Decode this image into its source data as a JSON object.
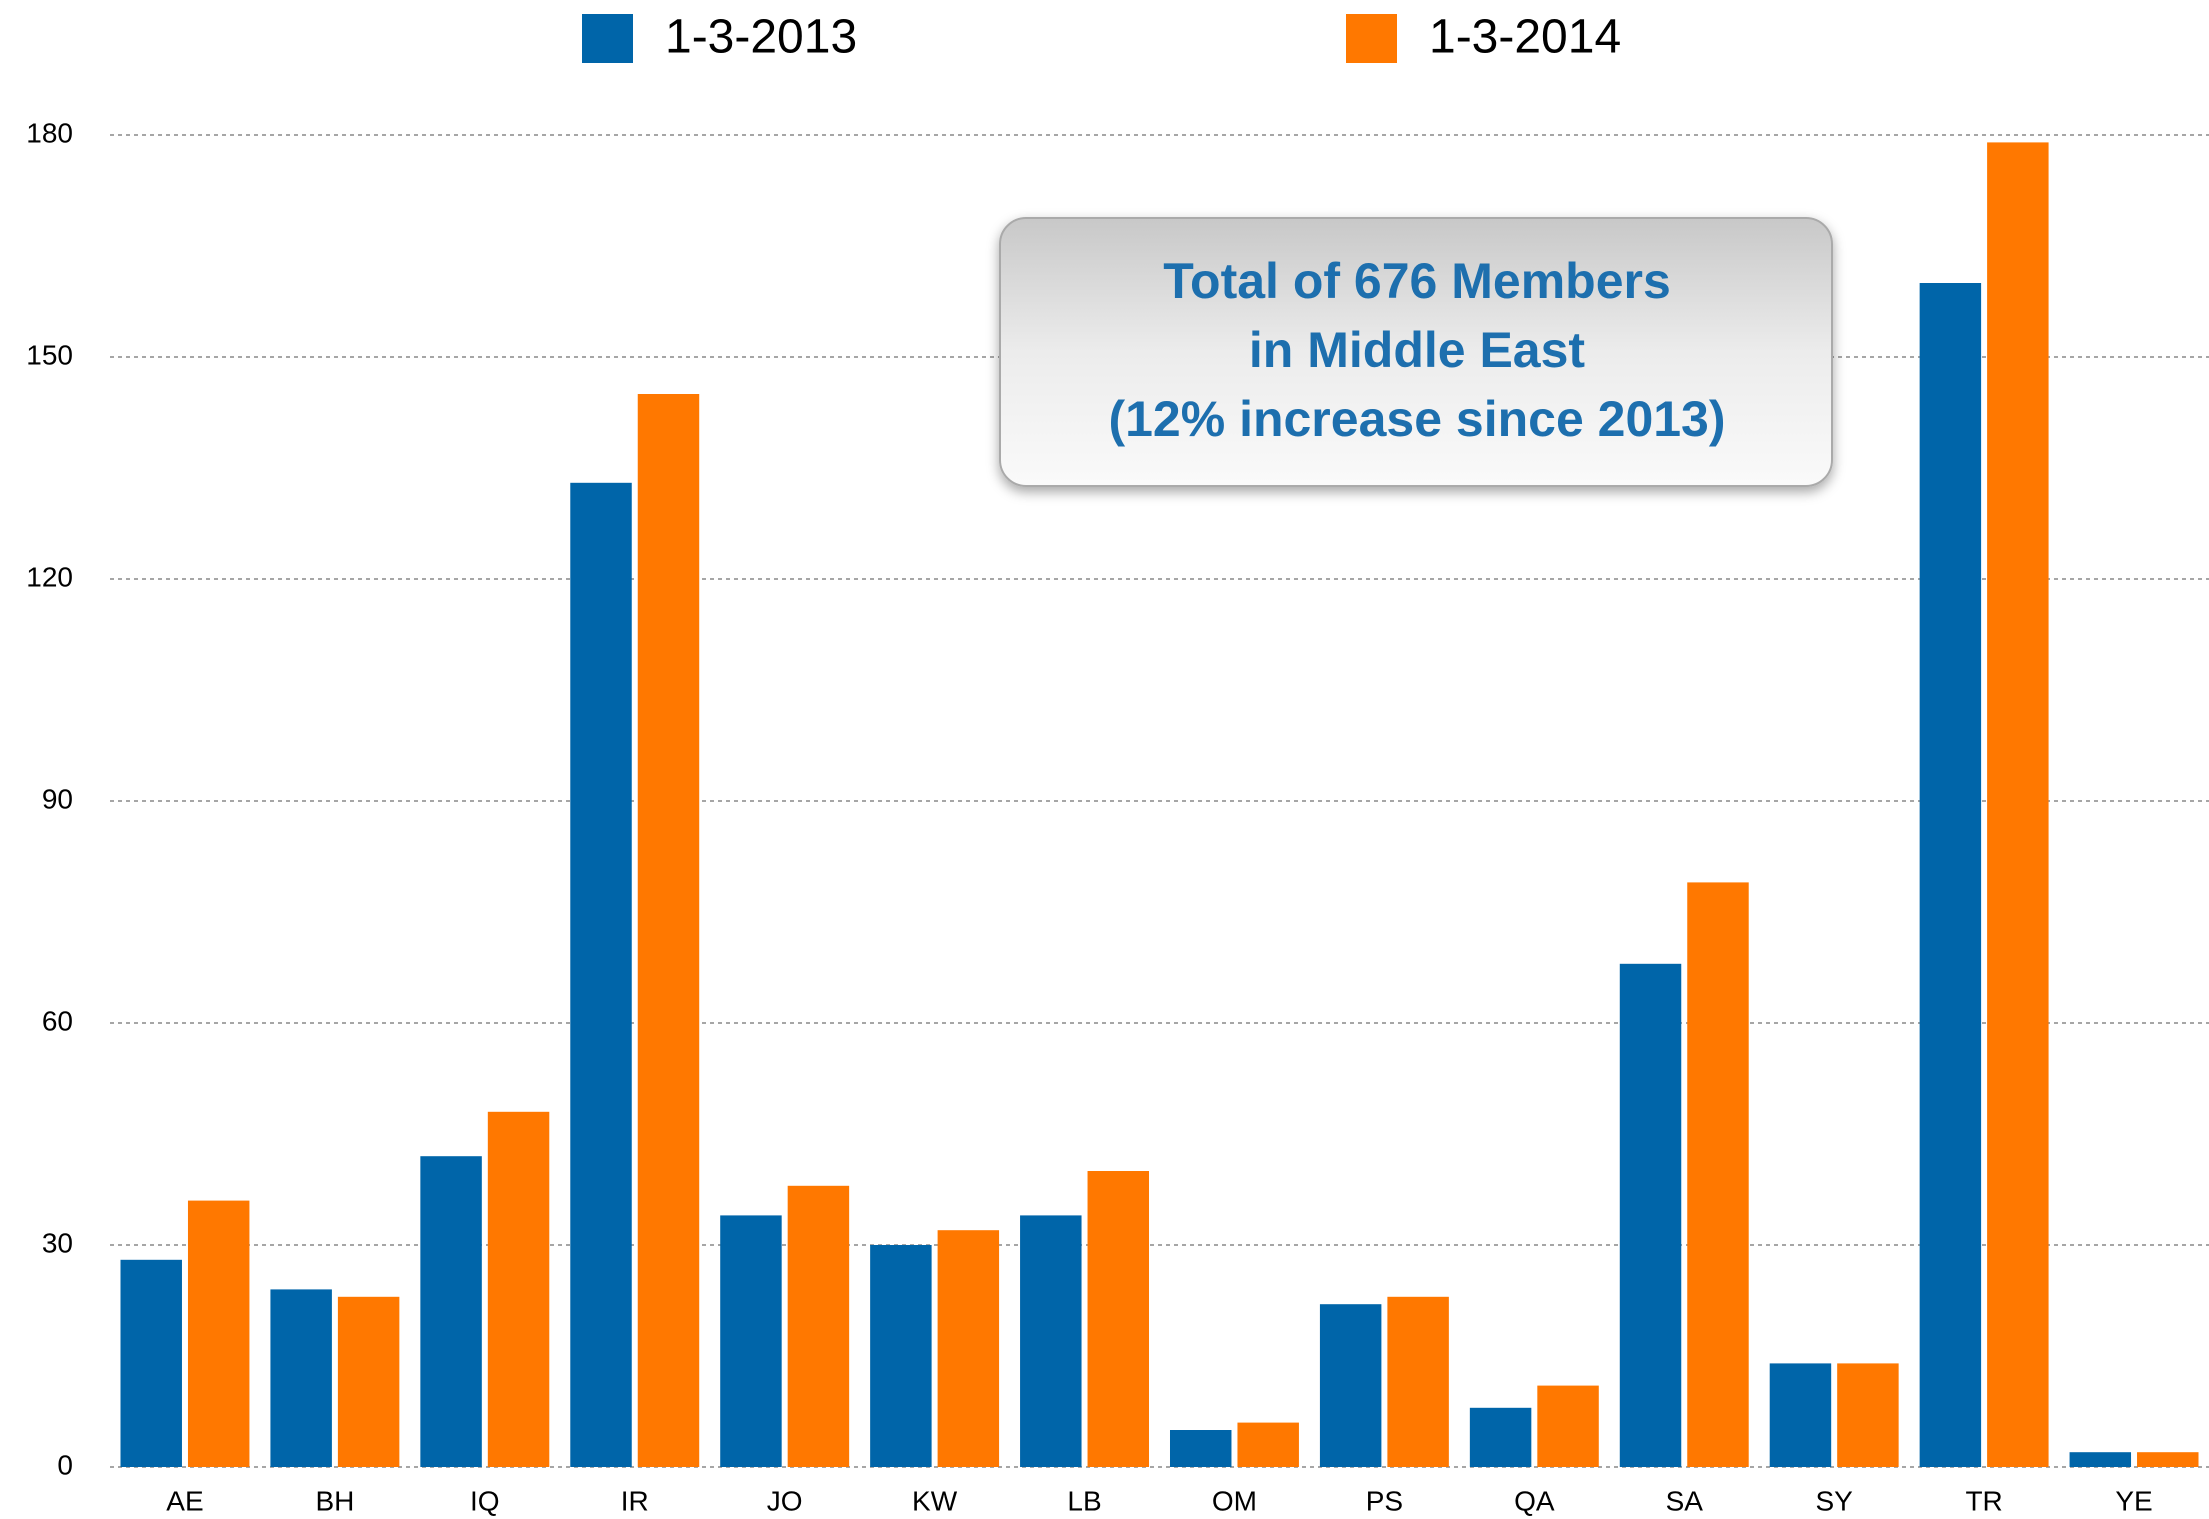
{
  "chart_data": {
    "type": "bar",
    "categories": [
      "AE",
      "BH",
      "IQ",
      "IR",
      "JO",
      "KW",
      "LB",
      "OM",
      "PS",
      "QA",
      "SA",
      "SY",
      "TR",
      "YE"
    ],
    "series": [
      {
        "name": "1-3-2013",
        "color": "#0065a9",
        "values": [
          28,
          24,
          42,
          133,
          34,
          30,
          34,
          5,
          22,
          8,
          68,
          14,
          160,
          2
        ]
      },
      {
        "name": "1-3-2014",
        "color": "#ff7800",
        "values": [
          36,
          23,
          48,
          145,
          38,
          32,
          40,
          6,
          23,
          11,
          79,
          14,
          179,
          2
        ]
      }
    ],
    "ylim": [
      0,
      180
    ],
    "yticks": [
      0,
      30,
      60,
      90,
      120,
      150,
      180
    ],
    "grid": true,
    "annotation": [
      "Total of 676 Members",
      "in Middle East",
      "(12% increase since 2013)"
    ]
  }
}
